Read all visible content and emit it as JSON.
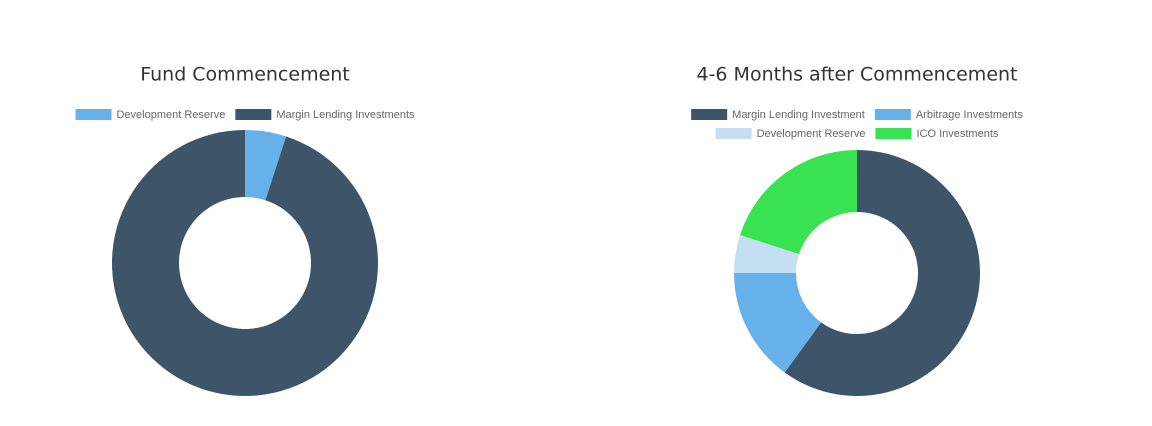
{
  "chart_data": [
    {
      "type": "doughnut",
      "title": "Fund Commencement",
      "categories": [
        "Development Reserve",
        "Margin Lending Investments"
      ],
      "values": [
        5,
        95
      ],
      "colors": [
        "#67b1ea",
        "#3d5469"
      ]
    },
    {
      "type": "doughnut",
      "title": "4-6 Months after Commencement",
      "categories": [
        "Margin Lending Investment",
        "Arbitrage Investments",
        "Development Reserve",
        "ICO Investments"
      ],
      "values": [
        60,
        15,
        5,
        20
      ],
      "colors": [
        "#3d5469",
        "#67b1ea",
        "#c5dff2",
        "#39e251"
      ]
    }
  ]
}
